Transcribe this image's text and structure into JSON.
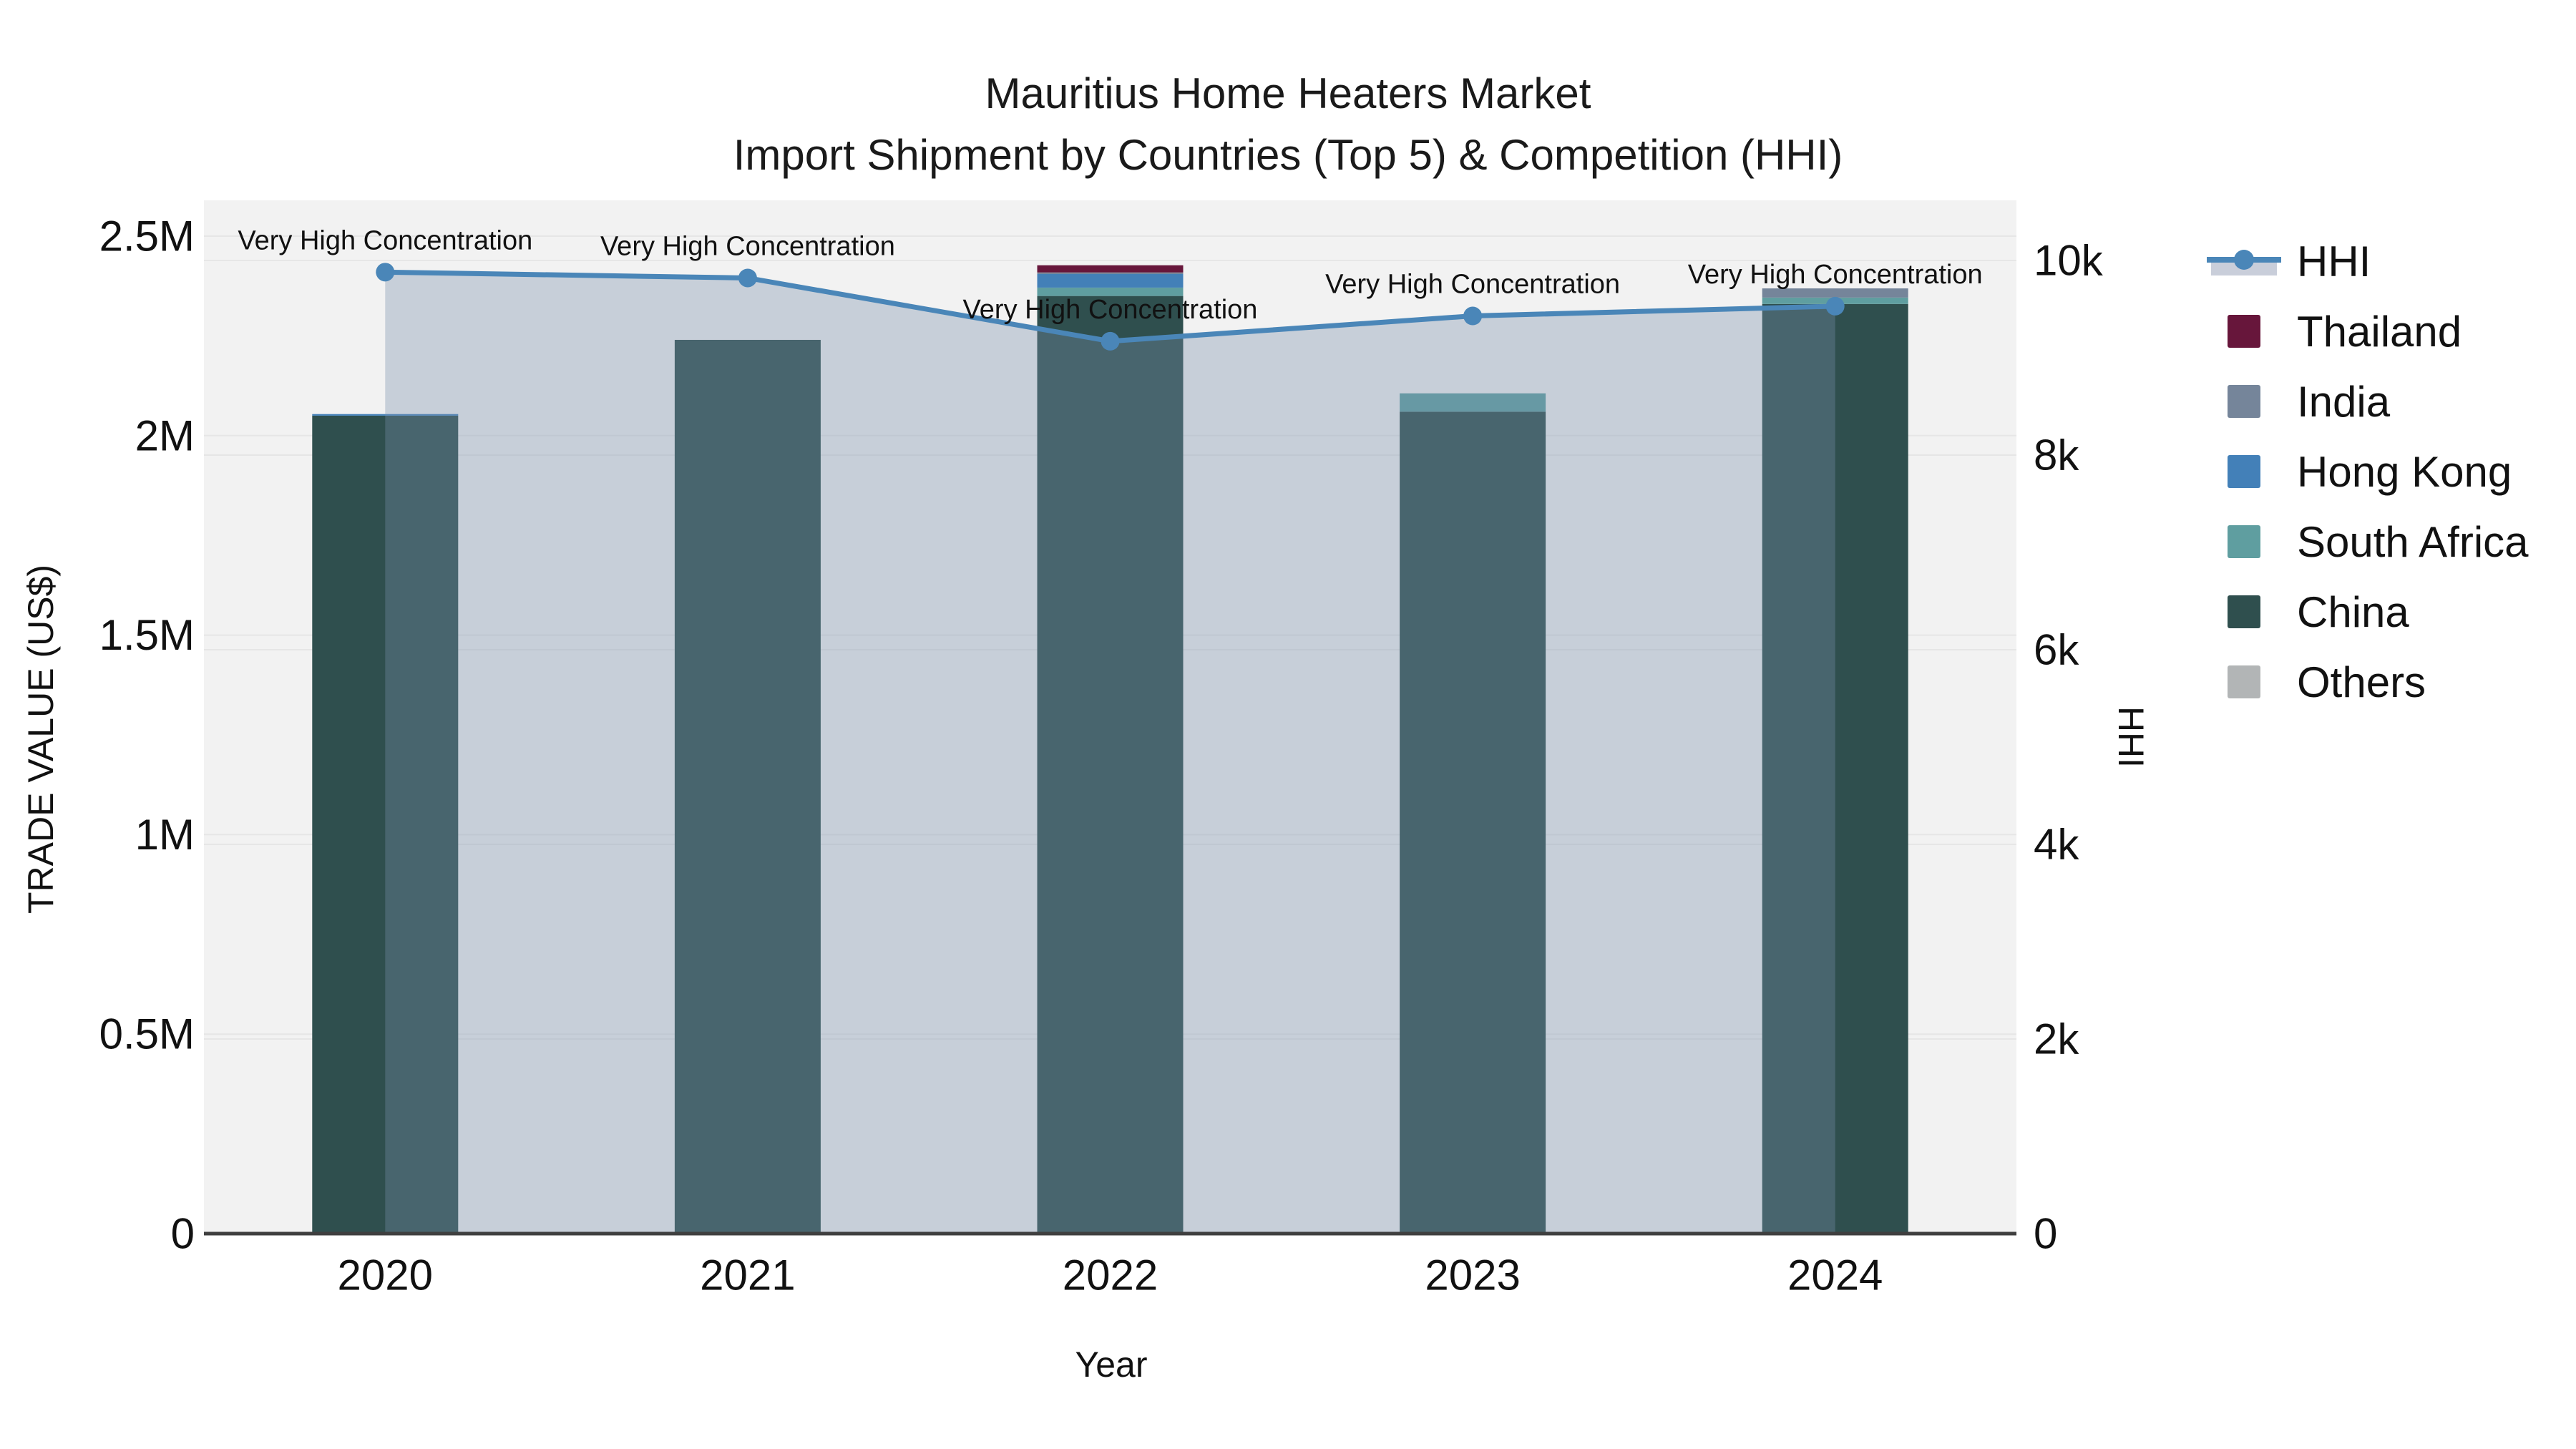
{
  "title": {
    "line1": "Mauritius Home Heaters Market",
    "line2": "Import Shipment by Countries (Top 5) & Competition (HHI)"
  },
  "axes": {
    "x": {
      "title": "Year",
      "ticks": [
        "2020",
        "2021",
        "2022",
        "2023",
        "2024"
      ]
    },
    "y_left": {
      "title": "TRADE VALUE (US$)",
      "ticks": [
        "0",
        "0.5M",
        "1M",
        "1.5M",
        "2M",
        "2.5M"
      ],
      "max": 2500000
    },
    "y_right": {
      "title": "HHI",
      "ticks": [
        "0",
        "2k",
        "4k",
        "6k",
        "8k",
        "10k"
      ],
      "max": 10000
    }
  },
  "legend": {
    "items": [
      {
        "label": "HHI",
        "type": "line",
        "color": "#4A86B8",
        "band_color": "#C9CEDA"
      },
      {
        "label": "Thailand",
        "type": "square",
        "color": "#67163B"
      },
      {
        "label": "India",
        "type": "square",
        "color": "#75859A"
      },
      {
        "label": "Hong Kong",
        "type": "square",
        "color": "#4380B8"
      },
      {
        "label": "South Africa",
        "type": "square",
        "color": "#5F9EA0"
      },
      {
        "label": "China",
        "type": "square",
        "color": "#2F4F4E"
      },
      {
        "label": "Others",
        "type": "square",
        "color": "#B2B5B6"
      }
    ]
  },
  "colors": {
    "plot_bg": "#F2F2F2",
    "grid": "#E6E6E6",
    "axis_line": "#3F3F3F",
    "text": "#111111",
    "hhi_line": "#4A86B8",
    "hhi_area_fill": "rgba(121,142,172,0.35)"
  },
  "chart_data": {
    "type": "stacked_bar_line_combo",
    "title": "Mauritius Home Heaters Market — Import Shipment by Countries (Top 5) & Competition (HHI)",
    "categories": [
      "2020",
      "2021",
      "2022",
      "2023",
      "2024"
    ],
    "xlabel": "Year",
    "ylabel_left": "TRADE VALUE (US$)",
    "ylabel_right": "HHI",
    "ylim_left": [
      0,
      2500000
    ],
    "ylim_right": [
      0,
      10000
    ],
    "bar_series": [
      {
        "name": "China",
        "color": "#2F4F4E",
        "values": [
          2050000,
          2240000,
          2350000,
          2060000,
          2330000
        ]
      },
      {
        "name": "South Africa",
        "color": "#5F9EA0",
        "values": [
          0,
          0,
          21000,
          46000,
          16000
        ]
      },
      {
        "name": "Hong Kong",
        "color": "#4380B8",
        "values": [
          4000,
          0,
          34000,
          0,
          0
        ]
      },
      {
        "name": "India",
        "color": "#75859A",
        "values": [
          0,
          0,
          4000,
          0,
          23000
        ]
      },
      {
        "name": "Thailand",
        "color": "#67163B",
        "values": [
          0,
          0,
          18000,
          0,
          0
        ]
      },
      {
        "name": "Others",
        "color": "#B2B5B6",
        "values": [
          0,
          0,
          0,
          0,
          0
        ]
      }
    ],
    "line_series": {
      "name": "HHI",
      "color": "#4A86B8",
      "area_fill": "rgba(121,142,172,0.35)",
      "values": [
        9880,
        9820,
        9170,
        9430,
        9530
      ]
    },
    "annotations": [
      {
        "x": "2020",
        "text": "Very High Concentration"
      },
      {
        "x": "2021",
        "text": "Very High Concentration"
      },
      {
        "x": "2022",
        "text": "Very High Concentration"
      },
      {
        "x": "2023",
        "text": "Very High Concentration"
      },
      {
        "x": "2024",
        "text": "Very High Concentration"
      }
    ],
    "legend_position": "right",
    "grid": true
  }
}
